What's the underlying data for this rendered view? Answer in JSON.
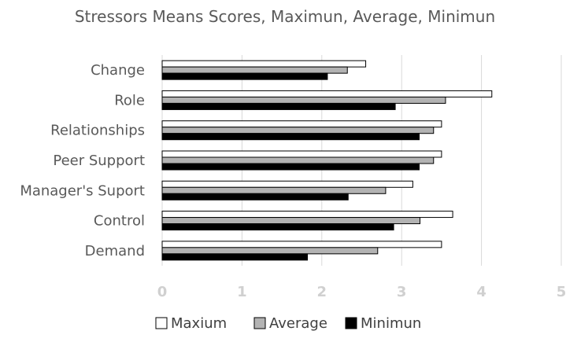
{
  "chart_data": {
    "type": "bar",
    "orientation": "horizontal",
    "title": "Stressors Means Scores, Maximun, Average, Minimun",
    "categories": [
      "Change",
      "Role",
      "Relationships",
      "Peer Support",
      "Manager's Suport",
      "Control",
      "Demand"
    ],
    "series": [
      {
        "name": "Maxium",
        "color": "#ffffff",
        "stroke": "#000000",
        "values": [
          2.55,
          4.13,
          3.5,
          3.5,
          3.14,
          3.64,
          3.5
        ]
      },
      {
        "name": "Average",
        "color": "#b3b3b3",
        "stroke": "#000000",
        "values": [
          2.32,
          3.55,
          3.4,
          3.4,
          2.8,
          3.23,
          2.7
        ]
      },
      {
        "name": "Minimun",
        "color": "#000000",
        "stroke": "#000000",
        "values": [
          2.07,
          2.92,
          3.22,
          3.22,
          2.33,
          2.9,
          1.82
        ]
      }
    ],
    "xlim": [
      0,
      5
    ],
    "ticks": [
      "0",
      "1",
      "2",
      "3",
      "4",
      "5"
    ],
    "grid": true,
    "legend": "bottom"
  }
}
